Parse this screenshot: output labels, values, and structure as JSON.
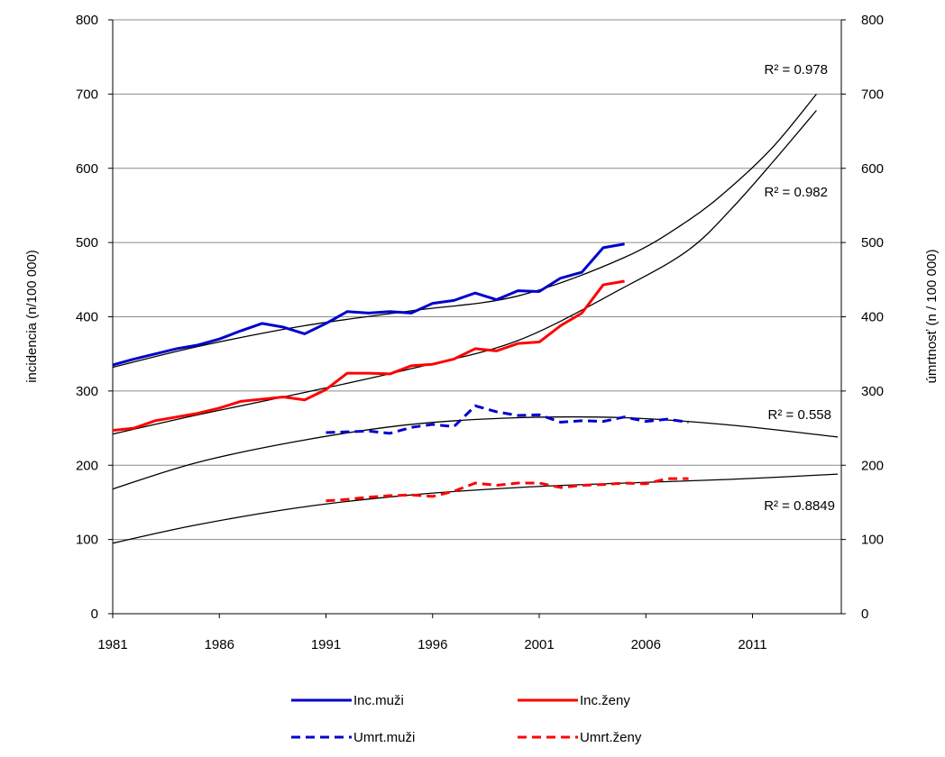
{
  "chart_data": {
    "type": "line",
    "ylabel_left": "incidencia   (n/100 000)",
    "ylabel_right": "úmrtnosť   (n / 100 000)",
    "xlim": [
      1981,
      2015
    ],
    "ylim": [
      0,
      800
    ],
    "grid": "horizontal",
    "legend_position": "bottom",
    "x_ticks": [
      "1981",
      "1986",
      "1991",
      "1996",
      "2001",
      "2006",
      "2011"
    ],
    "y_ticks": [
      "0",
      "100",
      "200",
      "300",
      "400",
      "500",
      "600",
      "700",
      "800"
    ],
    "series": [
      {
        "name": "Inc.muži",
        "color": "#0000cc",
        "style": "solid",
        "x": [
          1981,
          1982,
          1983,
          1984,
          1985,
          1986,
          1987,
          1988,
          1989,
          1990,
          1991,
          1992,
          1993,
          1994,
          1995,
          1996,
          1997,
          1998,
          1999,
          2000,
          2001,
          2002,
          2003,
          2004,
          2005
        ],
        "values": [
          335,
          343,
          350,
          357,
          362,
          370,
          381,
          391,
          386,
          377,
          391,
          407,
          405,
          407,
          405,
          418,
          422,
          432,
          423,
          435,
          434,
          452,
          460,
          493,
          498
        ]
      },
      {
        "name": "Inc.ženy",
        "color": "#ff0000",
        "style": "solid",
        "x": [
          1981,
          1982,
          1983,
          1984,
          1985,
          1986,
          1987,
          1988,
          1989,
          1990,
          1991,
          1992,
          1993,
          1994,
          1995,
          1996,
          1997,
          1998,
          1999,
          2000,
          2001,
          2002,
          2003,
          2004,
          2005
        ],
        "values": [
          247,
          250,
          260,
          265,
          270,
          277,
          286,
          289,
          292,
          288,
          302,
          324,
          324,
          323,
          334,
          336,
          343,
          357,
          354,
          364,
          366,
          388,
          405,
          443,
          448
        ]
      },
      {
        "name": "Umrt.muži",
        "color": "#0000cc",
        "style": "dashed",
        "x": [
          1991,
          1992,
          1993,
          1994,
          1995,
          1996,
          1997,
          1998,
          1999,
          2000,
          2001,
          2002,
          2003,
          2004,
          2005,
          2006,
          2007,
          2008
        ],
        "values": [
          244,
          245,
          246,
          243,
          251,
          255,
          252,
          280,
          272,
          267,
          268,
          258,
          260,
          259,
          265,
          259,
          262,
          258
        ]
      },
      {
        "name": "Umrt.ženy",
        "color": "#ff0000",
        "style": "dashed",
        "x": [
          1991,
          1992,
          1993,
          1994,
          1995,
          1996,
          1997,
          1998,
          1999,
          2000,
          2001,
          2002,
          2003,
          2004,
          2005,
          2006,
          2007,
          2008
        ],
        "values": [
          152,
          154,
          157,
          159,
          160,
          158,
          165,
          176,
          173,
          176,
          176,
          170,
          173,
          174,
          176,
          175,
          182,
          182
        ]
      }
    ],
    "trendlines": [
      {
        "x": [
          1981,
          1985,
          1990,
          1995,
          2000,
          2005,
          2008,
          2010,
          2012,
          2014
        ],
        "values": [
          332,
          360,
          388,
          408,
          428,
          480,
          530,
          575,
          630,
          700
        ],
        "r2_label": "R² = 0.978"
      },
      {
        "x": [
          1981,
          1985,
          1990,
          1995,
          2000,
          2005,
          2008,
          2010,
          2012,
          2014
        ],
        "values": [
          242,
          268,
          298,
          330,
          368,
          440,
          490,
          545,
          610,
          678
        ],
        "r2_label": "R² = 0.982"
      },
      {
        "x": [
          1981,
          1985,
          1990,
          1995,
          2000,
          2005,
          2010,
          2015
        ],
        "values": [
          168,
          204,
          234,
          255,
          264,
          264,
          254,
          238
        ],
        "r2_label": "R² = 0.558"
      },
      {
        "x": [
          1981,
          1985,
          1990,
          1995,
          2000,
          2005,
          2010,
          2015
        ],
        "values": [
          95,
          120,
          144,
          160,
          170,
          176,
          181,
          188
        ],
        "r2_label": "R² = 0.8849"
      }
    ]
  }
}
